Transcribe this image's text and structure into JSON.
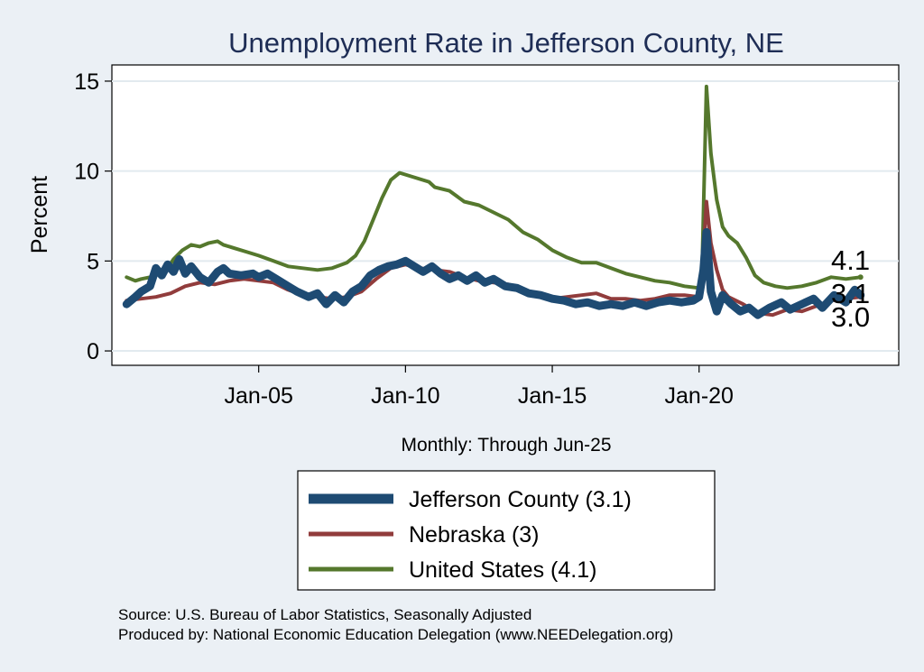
{
  "chart_data": {
    "type": "line",
    "title": "Unemployment Rate in Jefferson  County, NE",
    "ylabel": "Percent",
    "xlabel": "Monthly: Through Jun-25",
    "xlim": [
      2000.0,
      2026.8
    ],
    "ylim": [
      -0.8,
      15.9
    ],
    "yticks": [
      0,
      5,
      10,
      15
    ],
    "xticks": [
      {
        "value": 2005.0,
        "label": "Jan-05"
      },
      {
        "value": 2010.0,
        "label": "Jan-10"
      },
      {
        "value": 2015.0,
        "label": "Jan-15"
      },
      {
        "value": 2020.0,
        "label": "Jan-20"
      }
    ],
    "grid": true,
    "series": [
      {
        "name": "United States",
        "legend_label": "United States (4.1)",
        "color": "#55782d",
        "end_label": "4.1",
        "points": [
          [
            2000.5,
            4.1
          ],
          [
            2000.8,
            3.9
          ],
          [
            2001.0,
            4.0
          ],
          [
            2001.3,
            4.1
          ],
          [
            2001.6,
            4.3
          ],
          [
            2001.9,
            4.6
          ],
          [
            2002.1,
            5.1
          ],
          [
            2002.4,
            5.6
          ],
          [
            2002.7,
            5.9
          ],
          [
            2003.0,
            5.8
          ],
          [
            2003.3,
            6.0
          ],
          [
            2003.6,
            6.1
          ],
          [
            2003.8,
            5.9
          ],
          [
            2004.2,
            5.7
          ],
          [
            2004.6,
            5.5
          ],
          [
            2005.0,
            5.3
          ],
          [
            2005.5,
            5.0
          ],
          [
            2006.0,
            4.7
          ],
          [
            2006.5,
            4.6
          ],
          [
            2007.0,
            4.5
          ],
          [
            2007.5,
            4.6
          ],
          [
            2008.0,
            4.9
          ],
          [
            2008.3,
            5.3
          ],
          [
            2008.6,
            6.1
          ],
          [
            2008.9,
            7.3
          ],
          [
            2009.2,
            8.5
          ],
          [
            2009.5,
            9.5
          ],
          [
            2009.8,
            9.9
          ],
          [
            2010.0,
            9.8
          ],
          [
            2010.4,
            9.6
          ],
          [
            2010.8,
            9.4
          ],
          [
            2011.0,
            9.1
          ],
          [
            2011.5,
            8.9
          ],
          [
            2012.0,
            8.3
          ],
          [
            2012.5,
            8.1
          ],
          [
            2013.0,
            7.7
          ],
          [
            2013.5,
            7.3
          ],
          [
            2014.0,
            6.6
          ],
          [
            2014.5,
            6.2
          ],
          [
            2015.0,
            5.6
          ],
          [
            2015.5,
            5.2
          ],
          [
            2016.0,
            4.9
          ],
          [
            2016.5,
            4.9
          ],
          [
            2017.0,
            4.6
          ],
          [
            2017.5,
            4.3
          ],
          [
            2018.0,
            4.1
          ],
          [
            2018.5,
            3.9
          ],
          [
            2019.0,
            3.8
          ],
          [
            2019.5,
            3.6
          ],
          [
            2020.0,
            3.5
          ],
          [
            2020.1,
            4.4
          ],
          [
            2020.25,
            14.7
          ],
          [
            2020.4,
            11.0
          ],
          [
            2020.6,
            8.4
          ],
          [
            2020.8,
            6.9
          ],
          [
            2021.0,
            6.4
          ],
          [
            2021.3,
            6.0
          ],
          [
            2021.6,
            5.2
          ],
          [
            2021.9,
            4.2
          ],
          [
            2022.2,
            3.8
          ],
          [
            2022.6,
            3.6
          ],
          [
            2023.0,
            3.5
          ],
          [
            2023.5,
            3.6
          ],
          [
            2024.0,
            3.8
          ],
          [
            2024.5,
            4.1
          ],
          [
            2025.0,
            4.0
          ],
          [
            2025.5,
            4.1
          ]
        ]
      },
      {
        "name": "Nebraska",
        "legend_label": "Nebraska (3)",
        "color": "#913c3c",
        "end_label": "3.0",
        "points": [
          [
            2000.5,
            2.8
          ],
          [
            2001.0,
            2.9
          ],
          [
            2001.5,
            3.0
          ],
          [
            2002.0,
            3.2
          ],
          [
            2002.5,
            3.6
          ],
          [
            2003.0,
            3.8
          ],
          [
            2003.5,
            3.7
          ],
          [
            2004.0,
            3.9
          ],
          [
            2004.5,
            4.0
          ],
          [
            2005.0,
            3.9
          ],
          [
            2005.5,
            3.8
          ],
          [
            2006.0,
            3.4
          ],
          [
            2006.5,
            3.1
          ],
          [
            2007.0,
            3.0
          ],
          [
            2007.5,
            2.9
          ],
          [
            2008.0,
            3.0
          ],
          [
            2008.5,
            3.3
          ],
          [
            2009.0,
            4.0
          ],
          [
            2009.5,
            4.6
          ],
          [
            2010.0,
            4.8
          ],
          [
            2010.5,
            4.6
          ],
          [
            2011.0,
            4.5
          ],
          [
            2011.5,
            4.4
          ],
          [
            2012.0,
            4.1
          ],
          [
            2012.5,
            3.9
          ],
          [
            2013.0,
            3.8
          ],
          [
            2013.5,
            3.7
          ],
          [
            2014.0,
            3.4
          ],
          [
            2014.5,
            3.2
          ],
          [
            2015.0,
            2.9
          ],
          [
            2015.5,
            3.0
          ],
          [
            2016.0,
            3.1
          ],
          [
            2016.5,
            3.2
          ],
          [
            2017.0,
            2.9
          ],
          [
            2017.5,
            2.9
          ],
          [
            2018.0,
            2.8
          ],
          [
            2018.5,
            2.9
          ],
          [
            2019.0,
            3.1
          ],
          [
            2019.5,
            3.1
          ],
          [
            2020.0,
            3.0
          ],
          [
            2020.1,
            4.0
          ],
          [
            2020.25,
            8.3
          ],
          [
            2020.4,
            6.0
          ],
          [
            2020.6,
            4.5
          ],
          [
            2020.8,
            3.4
          ],
          [
            2021.0,
            3.0
          ],
          [
            2021.5,
            2.6
          ],
          [
            2022.0,
            2.1
          ],
          [
            2022.5,
            2.0
          ],
          [
            2023.0,
            2.3
          ],
          [
            2023.5,
            2.2
          ],
          [
            2024.0,
            2.5
          ],
          [
            2024.5,
            2.8
          ],
          [
            2025.0,
            2.9
          ],
          [
            2025.5,
            3.0
          ]
        ]
      },
      {
        "name": "Jefferson  County",
        "legend_label": "Jefferson  County (3.1)",
        "color": "#1e4b73",
        "end_label": "3.1",
        "points": [
          [
            2000.5,
            2.6
          ],
          [
            2000.8,
            3.0
          ],
          [
            2001.0,
            3.3
          ],
          [
            2001.3,
            3.6
          ],
          [
            2001.5,
            4.6
          ],
          [
            2001.7,
            4.2
          ],
          [
            2001.9,
            4.8
          ],
          [
            2002.1,
            4.4
          ],
          [
            2002.3,
            5.1
          ],
          [
            2002.5,
            4.3
          ],
          [
            2002.7,
            4.7
          ],
          [
            2003.0,
            4.1
          ],
          [
            2003.3,
            3.8
          ],
          [
            2003.6,
            4.4
          ],
          [
            2003.8,
            4.6
          ],
          [
            2004.0,
            4.3
          ],
          [
            2004.4,
            4.2
          ],
          [
            2004.8,
            4.3
          ],
          [
            2005.0,
            4.1
          ],
          [
            2005.3,
            4.3
          ],
          [
            2005.7,
            3.9
          ],
          [
            2006.0,
            3.6
          ],
          [
            2006.3,
            3.3
          ],
          [
            2006.7,
            3.0
          ],
          [
            2007.0,
            3.2
          ],
          [
            2007.3,
            2.6
          ],
          [
            2007.6,
            3.1
          ],
          [
            2007.9,
            2.7
          ],
          [
            2008.2,
            3.3
          ],
          [
            2008.5,
            3.6
          ],
          [
            2008.8,
            4.2
          ],
          [
            2009.1,
            4.5
          ],
          [
            2009.4,
            4.7
          ],
          [
            2009.7,
            4.8
          ],
          [
            2010.0,
            5.0
          ],
          [
            2010.3,
            4.7
          ],
          [
            2010.6,
            4.4
          ],
          [
            2010.9,
            4.7
          ],
          [
            2011.2,
            4.3
          ],
          [
            2011.5,
            4.0
          ],
          [
            2011.8,
            4.2
          ],
          [
            2012.1,
            3.9
          ],
          [
            2012.4,
            4.2
          ],
          [
            2012.7,
            3.8
          ],
          [
            2013.0,
            4.0
          ],
          [
            2013.4,
            3.6
          ],
          [
            2013.8,
            3.5
          ],
          [
            2014.2,
            3.2
          ],
          [
            2014.6,
            3.1
          ],
          [
            2015.0,
            2.9
          ],
          [
            2015.4,
            2.8
          ],
          [
            2015.8,
            2.6
          ],
          [
            2016.2,
            2.7
          ],
          [
            2016.6,
            2.5
          ],
          [
            2017.0,
            2.6
          ],
          [
            2017.4,
            2.5
          ],
          [
            2017.8,
            2.7
          ],
          [
            2018.2,
            2.5
          ],
          [
            2018.6,
            2.7
          ],
          [
            2019.0,
            2.8
          ],
          [
            2019.4,
            2.7
          ],
          [
            2019.8,
            2.8
          ],
          [
            2020.0,
            3.0
          ],
          [
            2020.15,
            4.5
          ],
          [
            2020.25,
            6.6
          ],
          [
            2020.4,
            3.3
          ],
          [
            2020.6,
            2.2
          ],
          [
            2020.8,
            3.1
          ],
          [
            2021.1,
            2.6
          ],
          [
            2021.4,
            2.2
          ],
          [
            2021.7,
            2.4
          ],
          [
            2022.0,
            2.0
          ],
          [
            2022.4,
            2.4
          ],
          [
            2022.8,
            2.7
          ],
          [
            2023.1,
            2.3
          ],
          [
            2023.5,
            2.6
          ],
          [
            2023.9,
            2.9
          ],
          [
            2024.2,
            2.4
          ],
          [
            2024.6,
            3.1
          ],
          [
            2025.0,
            2.7
          ],
          [
            2025.3,
            3.4
          ],
          [
            2025.5,
            3.1
          ]
        ]
      }
    ],
    "legend": {
      "placement": "bottom-center",
      "order": [
        "Jefferson  County",
        "Nebraska",
        "United States"
      ]
    },
    "footer": {
      "line1": "Source: U.S. Bureau of Labor Statistics, Seasonally Adjusted",
      "line2": "Produced by: National Economic Education Delegation (www.NEEDelegation.org)"
    }
  },
  "colors": {
    "background": "#ebf0f5",
    "plot_area": "#ffffff",
    "grid": "#e2eaef",
    "title": "#1e2d55"
  }
}
